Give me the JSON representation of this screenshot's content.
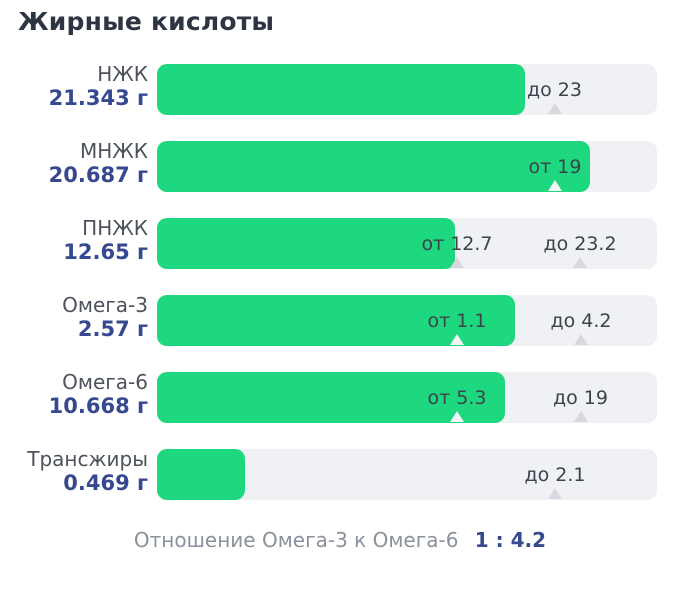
{
  "title": "Жирные кислоты",
  "colors": {
    "bar_green": "#1dd87e",
    "track_gray": "#f0f1f4",
    "value_navy": "#36488f",
    "label_gray": "#4d525c",
    "marker_text": "#3d424c",
    "footer_gray": "#8b919c",
    "title_color": "#2e3542"
  },
  "footer": {
    "label": "Отношение Омега-3 к Омега-6",
    "value": "1 : 4.2"
  },
  "chart_data": {
    "type": "bar",
    "orientation": "horizontal",
    "title": "Жирные кислоты",
    "unit": "г",
    "rows": [
      {
        "category": "НЖК",
        "value": 21.343,
        "value_label": "21.343 г",
        "bar_pct": 73.6,
        "markers": [
          {
            "kind": "max",
            "text": "до 23",
            "value": 23,
            "pos_pct": 79.5
          }
        ]
      },
      {
        "category": "МНЖК",
        "value": 20.687,
        "value_label": "20.687 г",
        "bar_pct": 86.6,
        "markers": [
          {
            "kind": "min",
            "text": "от 19",
            "value": 19,
            "pos_pct": 79.6
          }
        ]
      },
      {
        "category": "ПНЖК",
        "value": 12.65,
        "value_label": "12.65 г",
        "bar_pct": 59.6,
        "markers": [
          {
            "kind": "min",
            "text": "от 12.7",
            "value": 12.7,
            "pos_pct": 60
          },
          {
            "kind": "max",
            "text": "до 23.2",
            "value": 23.2,
            "pos_pct": 84.6
          }
        ]
      },
      {
        "category": "Омега-3",
        "value": 2.57,
        "value_label": "2.57 г",
        "bar_pct": 71.6,
        "markers": [
          {
            "kind": "min",
            "text": "от 1.1",
            "value": 1.1,
            "pos_pct": 60
          },
          {
            "kind": "max",
            "text": "до 4.2",
            "value": 4.2,
            "pos_pct": 84.8
          }
        ]
      },
      {
        "category": "Омега-6",
        "value": 10.668,
        "value_label": "10.668 г",
        "bar_pct": 69.6,
        "markers": [
          {
            "kind": "min",
            "text": "от 5.3",
            "value": 5.3,
            "pos_pct": 60
          },
          {
            "kind": "max",
            "text": "до 19",
            "value": 19,
            "pos_pct": 84.7
          }
        ]
      },
      {
        "category": "Трансжиры",
        "value": 0.469,
        "value_label": "0.469 г",
        "bar_pct": 17.6,
        "markers": [
          {
            "kind": "max",
            "text": "до 2.1",
            "value": 2.1,
            "pos_pct": 79.6
          }
        ]
      }
    ],
    "footer": {
      "label": "Отношение Омега-3 к Омега-6",
      "value": "1 : 4.2",
      "ratio": 4.2
    }
  }
}
